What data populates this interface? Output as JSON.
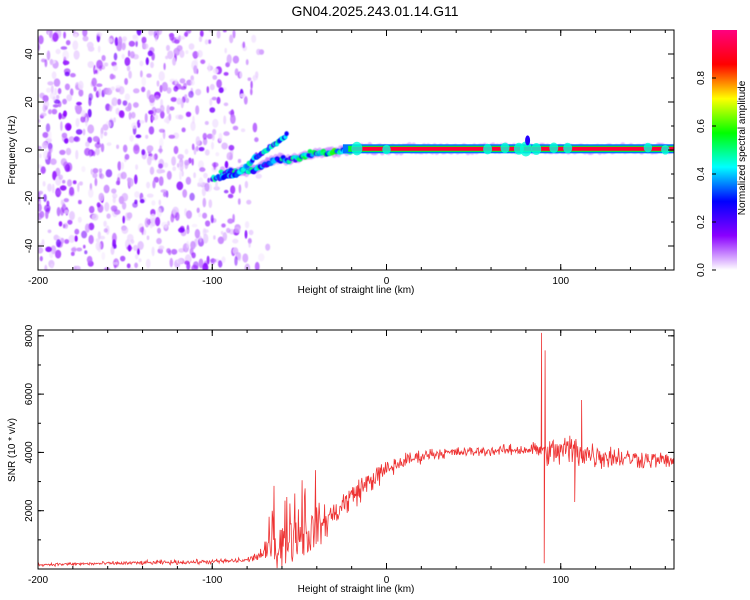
{
  "title": "GN04.2025.243.01.14.G11",
  "chart_data": [
    {
      "type": "heatmap",
      "title": "GN04.2025.243.01.14.G11",
      "xlabel": "Height of straight line (km)",
      "ylabel": "Frequency (Hz)",
      "xlim": [
        -200,
        165
      ],
      "ylim": [
        -50,
        50
      ],
      "xticks": [
        -200,
        -100,
        0,
        100
      ],
      "xtick_labels": [
        "-200",
        "-100",
        "0",
        "100"
      ],
      "yticks": [
        -40,
        -20,
        0,
        20,
        40
      ],
      "ytick_labels": [
        "-40",
        "-20",
        "0",
        "20",
        "40"
      ],
      "colorbar": {
        "label": "Normalized spectral amplitude",
        "range": [
          0,
          1
        ],
        "ticks": [
          0.0,
          0.2,
          0.4,
          0.6,
          0.8
        ],
        "tick_labels": [
          "0.0",
          "0.2",
          "0.4",
          "0.6",
          "0.8"
        ],
        "colors": [
          "#ffffff",
          "#8a00ff",
          "#0000ff",
          "#00ffff",
          "#00ff00",
          "#ffff00",
          "#ff0000",
          "#ff007f"
        ]
      },
      "features": {
        "noise_region_x": [
          -200,
          -75
        ],
        "tone_track": [
          {
            "x": -95,
            "f": -10
          },
          {
            "x": -85,
            "f": -9
          },
          {
            "x": -75,
            "f": -8
          },
          {
            "x": -65,
            "f": -4
          },
          {
            "x": -55,
            "f": -4
          },
          {
            "x": -45,
            "f": -2
          },
          {
            "x": -35,
            "f": -1
          },
          {
            "x": -25,
            "f": 0
          },
          {
            "x": -10,
            "f": 0.5
          },
          {
            "x": 0,
            "f": 0.5
          },
          {
            "x": 165,
            "f": 0.5
          }
        ],
        "secondary_branch": [
          {
            "x": -100,
            "f": -12
          },
          {
            "x": -85,
            "f": -10
          },
          {
            "x": -75,
            "f": -3
          },
          {
            "x": -65,
            "f": 2
          },
          {
            "x": -57,
            "f": 6
          }
        ]
      }
    },
    {
      "type": "line",
      "xlabel": "Height of straight line (km)",
      "ylabel": "SNR (10 * v/v)",
      "xlim": [
        -200,
        165
      ],
      "ylim": [
        0,
        8200
      ],
      "xticks": [
        -200,
        -100,
        0,
        100
      ],
      "xtick_labels": [
        "-200",
        "-100",
        "0",
        "100"
      ],
      "yticks": [
        2000,
        4000,
        6000,
        8000
      ],
      "ytick_labels": [
        "2000",
        "4000",
        "6000",
        "8000"
      ],
      "series": [
        {
          "name": "SNR",
          "color": "#ee3333",
          "envelope": [
            {
              "x": -200,
              "mean": 150,
              "spread": 80
            },
            {
              "x": -150,
              "mean": 200,
              "spread": 100
            },
            {
              "x": -100,
              "mean": 250,
              "spread": 120
            },
            {
              "x": -80,
              "mean": 300,
              "spread": 150
            },
            {
              "x": -72,
              "mean": 500,
              "spread": 300
            },
            {
              "x": -62,
              "mean": 900,
              "spread": 1200
            },
            {
              "x": -50,
              "mean": 1000,
              "spread": 1300
            },
            {
              "x": -40,
              "mean": 1400,
              "spread": 1000
            },
            {
              "x": -30,
              "mean": 1900,
              "spread": 800
            },
            {
              "x": -20,
              "mean": 2500,
              "spread": 700
            },
            {
              "x": -10,
              "mean": 3000,
              "spread": 600
            },
            {
              "x": 0,
              "mean": 3400,
              "spread": 500
            },
            {
              "x": 10,
              "mean": 3700,
              "spread": 400
            },
            {
              "x": 25,
              "mean": 3950,
              "spread": 300
            },
            {
              "x": 40,
              "mean": 4000,
              "spread": 250
            },
            {
              "x": 60,
              "mean": 4050,
              "spread": 250
            },
            {
              "x": 80,
              "mean": 4100,
              "spread": 300
            },
            {
              "x": 88,
              "mean": 4100,
              "spread": 500
            },
            {
              "x": 95,
              "mean": 4000,
              "spread": 800
            },
            {
              "x": 105,
              "mean": 4100,
              "spread": 900
            },
            {
              "x": 120,
              "mean": 3900,
              "spread": 700
            },
            {
              "x": 140,
              "mean": 3800,
              "spread": 500
            },
            {
              "x": 165,
              "mean": 3700,
              "spread": 400
            }
          ],
          "spikes": [
            {
              "x": 89,
              "y": 8100
            },
            {
              "x": 90.5,
              "y": 200
            },
            {
              "x": 91,
              "y": 7500
            },
            {
              "x": 112,
              "y": 5800
            },
            {
              "x": 108,
              "y": 2300
            }
          ]
        }
      ]
    }
  ]
}
